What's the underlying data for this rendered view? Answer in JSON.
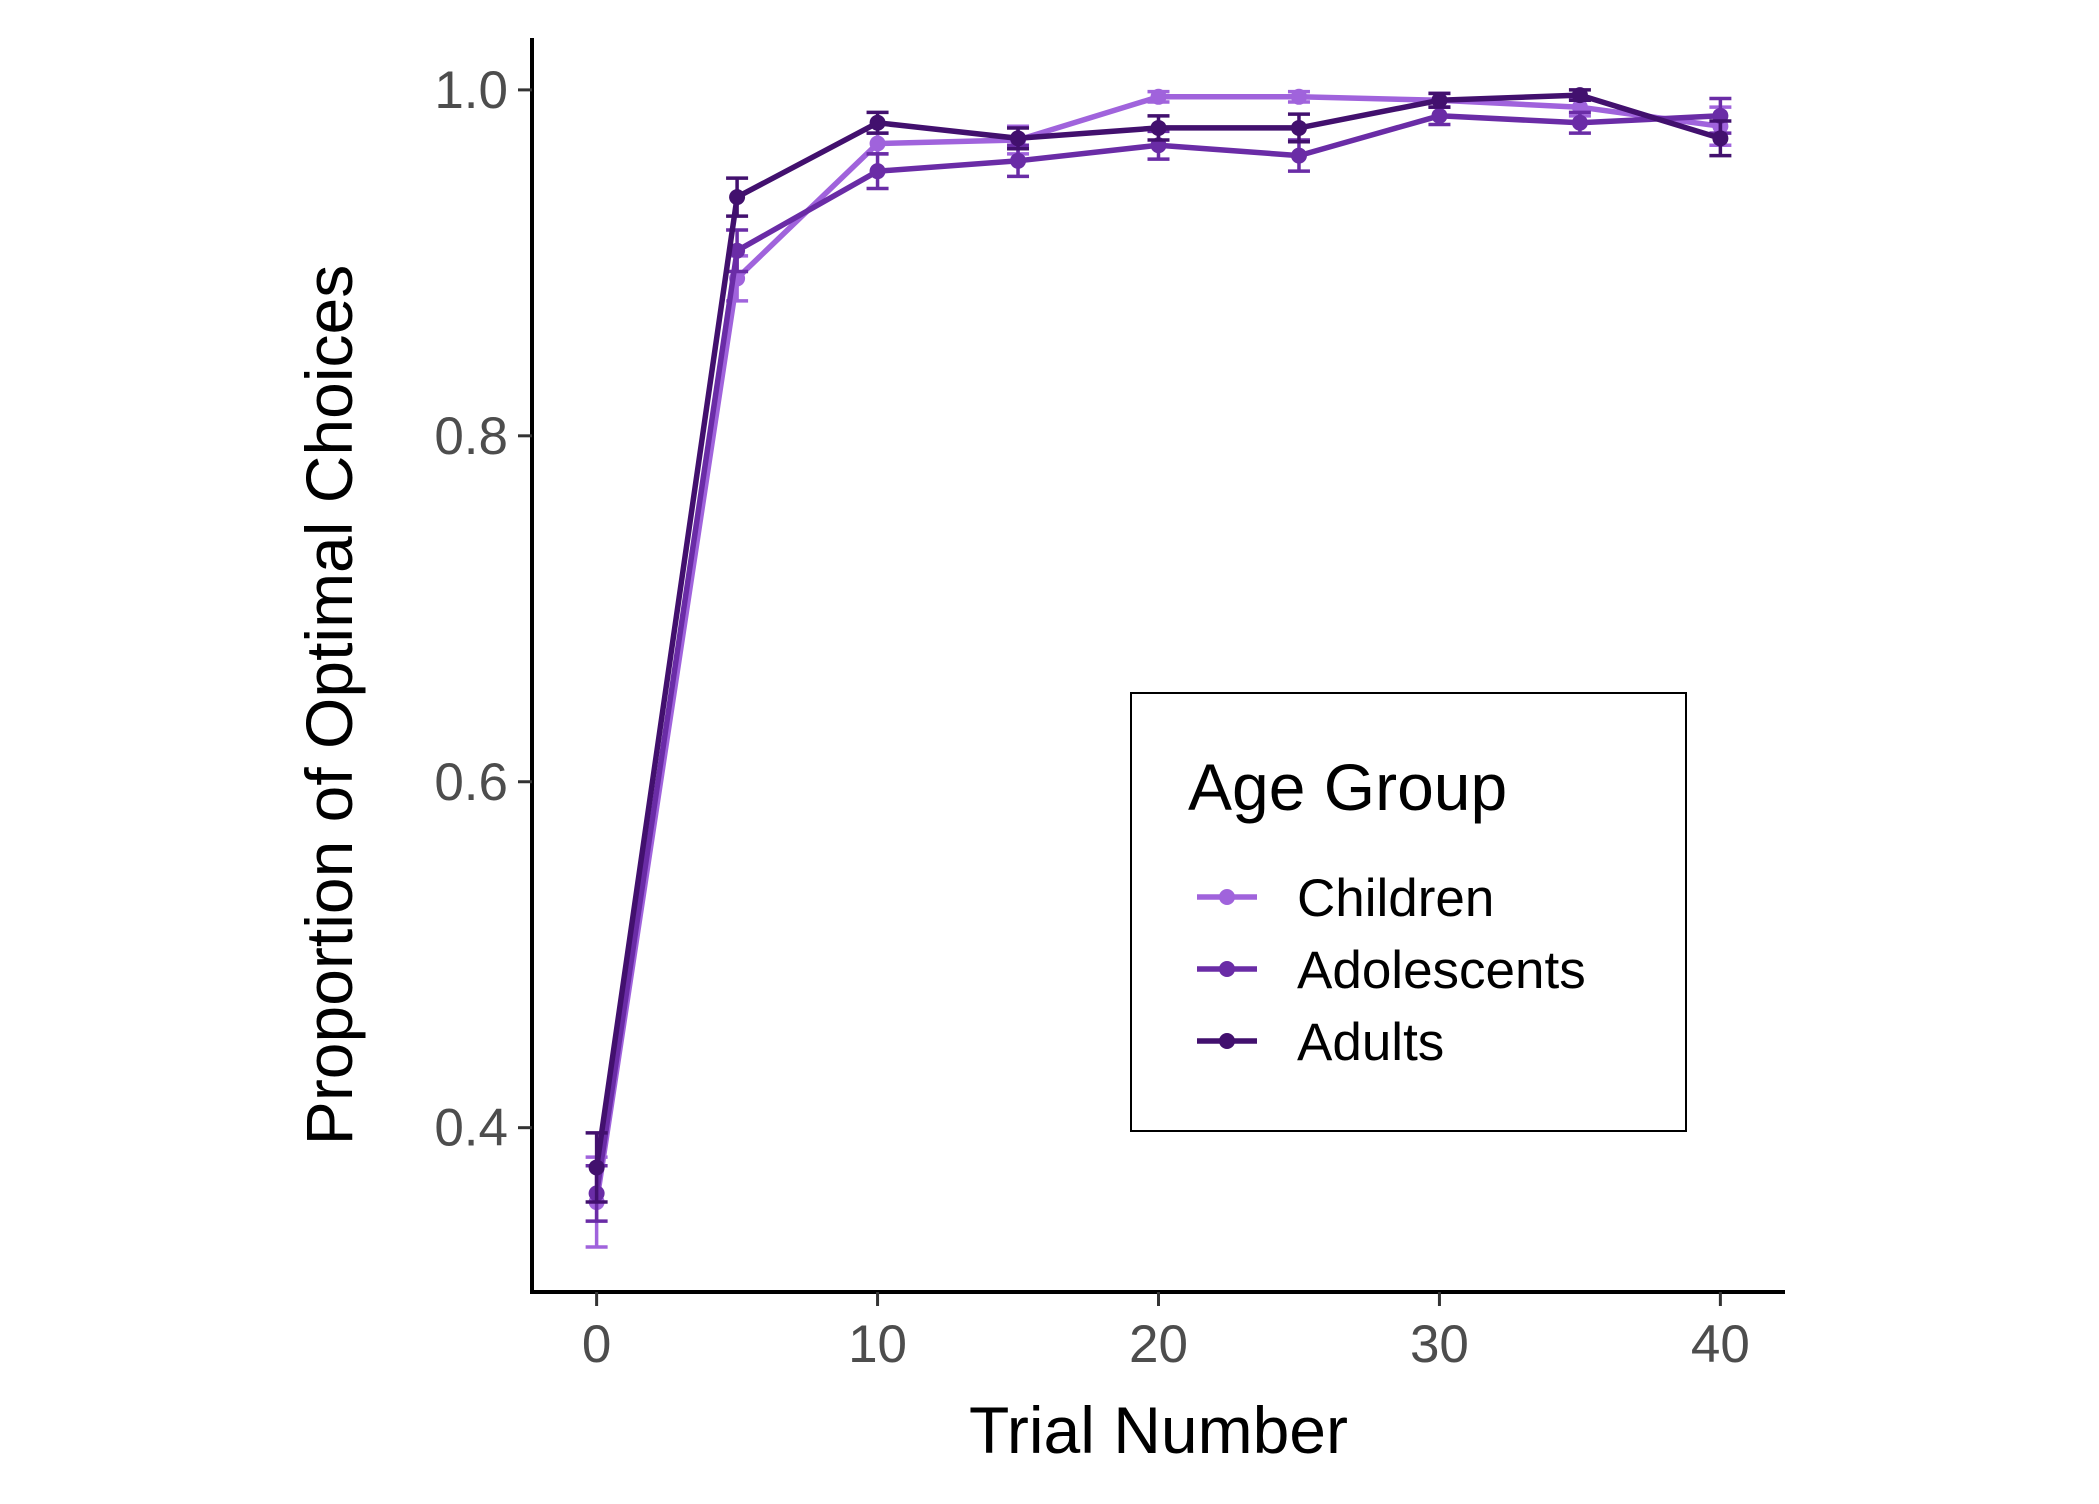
{
  "chart_data": {
    "type": "line",
    "title": "",
    "xlabel": "Trial Number",
    "ylabel": "Proportion of Optimal Choices",
    "xlim": [
      -2.3,
      42.3
    ],
    "ylim": [
      0.305,
      1.03
    ],
    "x_ticks": [
      0,
      10,
      20,
      30,
      40
    ],
    "x_tick_labels": [
      "0",
      "10",
      "20",
      "30",
      "40"
    ],
    "y_ticks": [
      0.4,
      0.6,
      0.8,
      1.0
    ],
    "y_tick_labels": [
      "0.4",
      "0.6",
      "0.8",
      "1.0"
    ],
    "grid": false,
    "legend": {
      "title": "Age Group",
      "position": "bottom-right",
      "entries": [
        "Children",
        "Adolescents",
        "Adults"
      ]
    },
    "x": [
      0,
      5,
      10,
      15,
      20,
      25,
      30,
      35,
      40
    ],
    "series": [
      {
        "name": "Children",
        "color": "#a063dc",
        "values": [
          0.357,
          0.891,
          0.969,
          0.971,
          0.996,
          0.996,
          0.994,
          0.99,
          0.979
        ],
        "errors": [
          0.026,
          0.013,
          0.006,
          0.008,
          0.003,
          0.003,
          0.004,
          0.005,
          0.011
        ]
      },
      {
        "name": "Adolescents",
        "color": "#6a2ca6",
        "values": [
          0.362,
          0.907,
          0.953,
          0.959,
          0.968,
          0.962,
          0.985,
          0.981,
          0.985
        ],
        "errors": [
          0.016,
          0.012,
          0.01,
          0.009,
          0.008,
          0.009,
          0.005,
          0.006,
          0.01
        ]
      },
      {
        "name": "Adults",
        "color": "#42106e",
        "values": [
          0.377,
          0.938,
          0.981,
          0.972,
          0.978,
          0.978,
          0.994,
          0.997,
          0.972
        ],
        "errors": [
          0.02,
          0.011,
          0.006,
          0.006,
          0.007,
          0.008,
          0.004,
          0.003,
          0.01
        ]
      }
    ]
  }
}
